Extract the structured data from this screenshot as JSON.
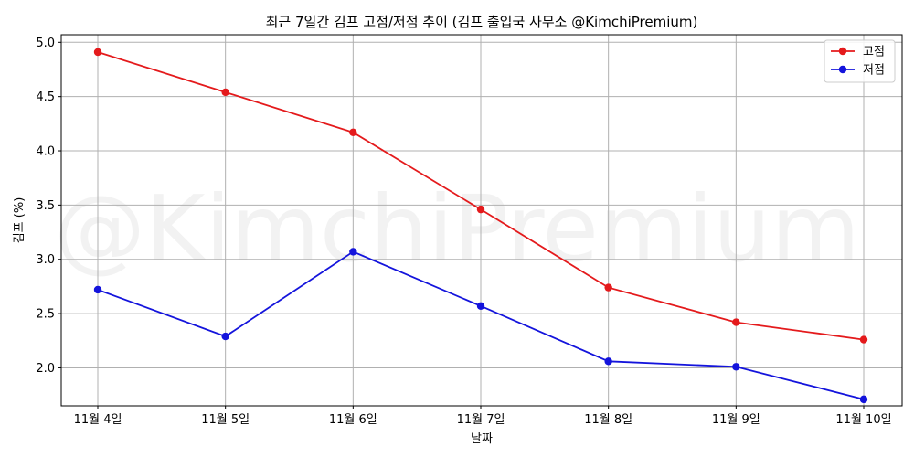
{
  "chart_data": {
    "type": "line",
    "title": "최근 7일간 김프 고점/저점 추이 (김프 출입국 사무소 @KimchiPremium)",
    "xlabel": "날짜",
    "ylabel": "김프 (%)",
    "watermark": "@KimchiPremium",
    "categories": [
      "11월 4일",
      "11월 5일",
      "11월 6일",
      "11월 7일",
      "11월 8일",
      "11월 9일",
      "11월 10일"
    ],
    "series": [
      {
        "name": "고점",
        "color": "#e41a1c",
        "values": [
          4.91,
          4.54,
          4.17,
          3.46,
          2.74,
          2.42,
          2.26
        ]
      },
      {
        "name": "저점",
        "color": "#1414dc",
        "values": [
          2.72,
          2.29,
          3.07,
          2.57,
          2.06,
          2.01,
          1.71
        ]
      }
    ],
    "ylim": [
      1.65,
      5.07
    ],
    "yticks": [
      "2.0",
      "2.5",
      "3.0",
      "3.5",
      "4.0",
      "4.5",
      "5.0"
    ],
    "grid": true,
    "legend_position": "top-right"
  }
}
